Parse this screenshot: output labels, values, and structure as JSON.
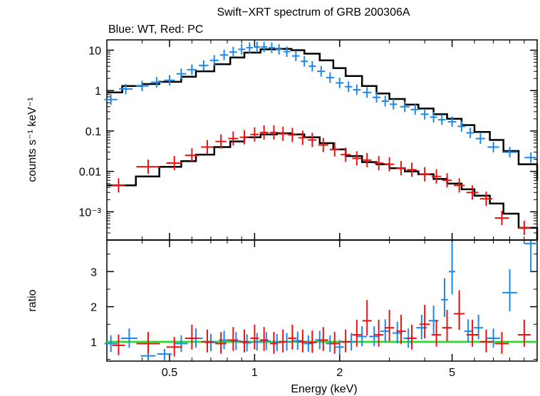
{
  "chart_data": [
    {
      "type": "scatter",
      "panel": "spectrum",
      "title": "Swift−XRT spectrum of GRB 200306A",
      "subtitle": "Blue: WT, Red: PC",
      "ylabel": "counts s⁻¹ keV⁻¹",
      "xlabel": "",
      "xscale": "log",
      "yscale": "log",
      "xlim": [
        0.3,
        10
      ],
      "ylim": [
        0.0002,
        18
      ],
      "y_tick_labels": [
        "10",
        "1",
        "0.1",
        "0.01",
        "10⁻³"
      ],
      "y_ticks": [
        10,
        1,
        0.1,
        0.01,
        0.001
      ],
      "colors": {
        "wt": "#1e88e5",
        "pc": "#ee1111",
        "model": "#000000"
      },
      "series": [
        {
          "id": "wt",
          "color": "#1e88e5",
          "x": [
            0.31,
            0.35,
            0.4,
            0.45,
            0.5,
            0.55,
            0.6,
            0.66,
            0.72,
            0.78,
            0.84,
            0.9,
            0.96,
            1.02,
            1.08,
            1.15,
            1.22,
            1.3,
            1.4,
            1.5,
            1.6,
            1.72,
            1.85,
            2.0,
            2.15,
            2.3,
            2.5,
            2.7,
            2.9,
            3.1,
            3.4,
            3.7,
            4.0,
            4.3,
            4.6,
            5.0,
            5.4,
            5.8,
            6.3,
            7.0,
            8.0,
            9.5
          ],
          "y": [
            0.6,
            1.1,
            1.3,
            1.6,
            1.8,
            2.6,
            3.3,
            4.2,
            5.6,
            7.6,
            9.0,
            10.5,
            11.5,
            12.0,
            12.0,
            11.5,
            10.5,
            9.2,
            7.2,
            5.3,
            4.0,
            3.0,
            2.1,
            1.55,
            1.25,
            1.05,
            0.9,
            0.68,
            0.55,
            0.46,
            0.4,
            0.34,
            0.26,
            0.22,
            0.19,
            0.17,
            0.13,
            0.09,
            0.065,
            0.04,
            0.03,
            0.022
          ]
        },
        {
          "id": "pc",
          "color": "#ee1111",
          "x": [
            0.33,
            0.42,
            0.52,
            0.6,
            0.68,
            0.76,
            0.84,
            0.92,
            1.0,
            1.08,
            1.17,
            1.26,
            1.36,
            1.48,
            1.6,
            1.75,
            1.92,
            2.1,
            2.3,
            2.5,
            2.75,
            3.0,
            3.3,
            3.6,
            4.0,
            4.4,
            4.8,
            5.3,
            5.9,
            6.6,
            7.5,
            9.0
          ],
          "y": [
            0.0045,
            0.013,
            0.016,
            0.025,
            0.04,
            0.055,
            0.065,
            0.07,
            0.082,
            0.092,
            0.092,
            0.085,
            0.08,
            0.068,
            0.06,
            0.045,
            0.035,
            0.026,
            0.021,
            0.019,
            0.016,
            0.015,
            0.012,
            0.011,
            0.0085,
            0.0075,
            0.006,
            0.0045,
            0.003,
            0.0021,
            0.0007,
            0.0004
          ]
        },
        {
          "id": "wt_model",
          "color": "#000000",
          "x": [
            0.3,
            0.34,
            0.4,
            0.46,
            0.55,
            0.62,
            0.72,
            0.82,
            0.92,
            1.05,
            1.2,
            1.35,
            1.5,
            1.7,
            1.9,
            2.1,
            2.4,
            2.7,
            3.0,
            3.4,
            3.8,
            4.3,
            4.8,
            5.4,
            6.0,
            6.8,
            7.6,
            8.6,
            10.0
          ],
          "y": [
            0.9,
            1.3,
            1.45,
            1.65,
            2.2,
            3.0,
            4.5,
            6.6,
            8.7,
            10.5,
            10.8,
            10.0,
            8.2,
            5.6,
            3.6,
            2.3,
            1.3,
            0.85,
            0.62,
            0.45,
            0.36,
            0.26,
            0.2,
            0.14,
            0.095,
            0.06,
            0.032,
            0.015,
            0.006
          ]
        },
        {
          "id": "pc_model",
          "color": "#000000",
          "x": [
            0.3,
            0.38,
            0.46,
            0.55,
            0.62,
            0.72,
            0.82,
            0.92,
            1.05,
            1.2,
            1.35,
            1.5,
            1.7,
            1.9,
            2.1,
            2.4,
            2.7,
            3.0,
            3.4,
            3.8,
            4.3,
            4.8,
            5.4,
            6.0,
            6.8,
            7.6,
            8.6,
            10.0
          ],
          "y": [
            0.0045,
            0.0075,
            0.013,
            0.018,
            0.026,
            0.04,
            0.055,
            0.07,
            0.082,
            0.088,
            0.082,
            0.07,
            0.05,
            0.035,
            0.024,
            0.017,
            0.015,
            0.012,
            0.01,
            0.0085,
            0.0065,
            0.005,
            0.0036,
            0.0025,
            0.0016,
            0.0009,
            0.0004,
            0.0002
          ]
        }
      ]
    },
    {
      "type": "scatter",
      "panel": "ratio",
      "xlabel": "Energy (keV)",
      "ylabel": "ratio",
      "xscale": "log",
      "xlim": [
        0.3,
        10
      ],
      "ylim": [
        0.45,
        3.9
      ],
      "x_ticks": [
        0.5,
        1,
        2,
        5
      ],
      "x_tick_labels": [
        "0.5",
        "1",
        "2",
        "5"
      ],
      "y_ticks": [
        1,
        2,
        3
      ],
      "y_tick_labels": [
        "1",
        "2",
        "3"
      ],
      "reference_line": {
        "y": 1,
        "color": "#22dd22"
      },
      "series": [
        {
          "id": "wt_ratio",
          "color": "#1e88e5",
          "x": [
            0.31,
            0.36,
            0.42,
            0.48,
            0.55,
            0.62,
            0.7,
            0.78,
            0.86,
            0.94,
            1.02,
            1.1,
            1.2,
            1.3,
            1.42,
            1.55,
            1.7,
            1.85,
            2.0,
            2.2,
            2.4,
            2.65,
            2.9,
            3.2,
            3.5,
            3.9,
            4.3,
            4.7,
            5.0,
            5.3,
            5.7,
            6.2,
            7.0,
            8.0,
            9.5
          ],
          "y": [
            0.95,
            1.1,
            0.6,
            0.65,
            0.95,
            1.1,
            0.98,
            1.05,
            1.02,
            0.97,
            1.0,
            1.02,
            0.98,
            1.0,
            1.03,
            0.95,
            1.05,
            0.95,
            0.85,
            1.0,
            1.15,
            1.15,
            1.3,
            1.25,
            1.1,
            1.4,
            1.6,
            2.2,
            3.0,
            1.8,
            1.3,
            1.4,
            1.1,
            2.4,
            3.8
          ]
        },
        {
          "id": "pc_ratio",
          "color": "#ee1111",
          "x": [
            0.33,
            0.42,
            0.52,
            0.6,
            0.68,
            0.76,
            0.84,
            0.92,
            1.0,
            1.08,
            1.17,
            1.26,
            1.36,
            1.48,
            1.6,
            1.75,
            1.92,
            2.1,
            2.3,
            2.5,
            2.75,
            3.0,
            3.3,
            3.6,
            4.0,
            4.4,
            4.8,
            5.3,
            5.9,
            6.6,
            7.5,
            9.0
          ],
          "y": [
            0.9,
            0.95,
            0.85,
            1.1,
            1.0,
            0.95,
            1.05,
            1.0,
            1.1,
            1.05,
            0.95,
            1.0,
            1.1,
            1.0,
            0.98,
            1.05,
            0.95,
            1.0,
            1.2,
            1.6,
            1.2,
            1.4,
            1.3,
            1.1,
            1.5,
            1.2,
            1.4,
            1.8,
            1.2,
            1.0,
            0.95,
            1.2
          ]
        }
      ]
    }
  ]
}
